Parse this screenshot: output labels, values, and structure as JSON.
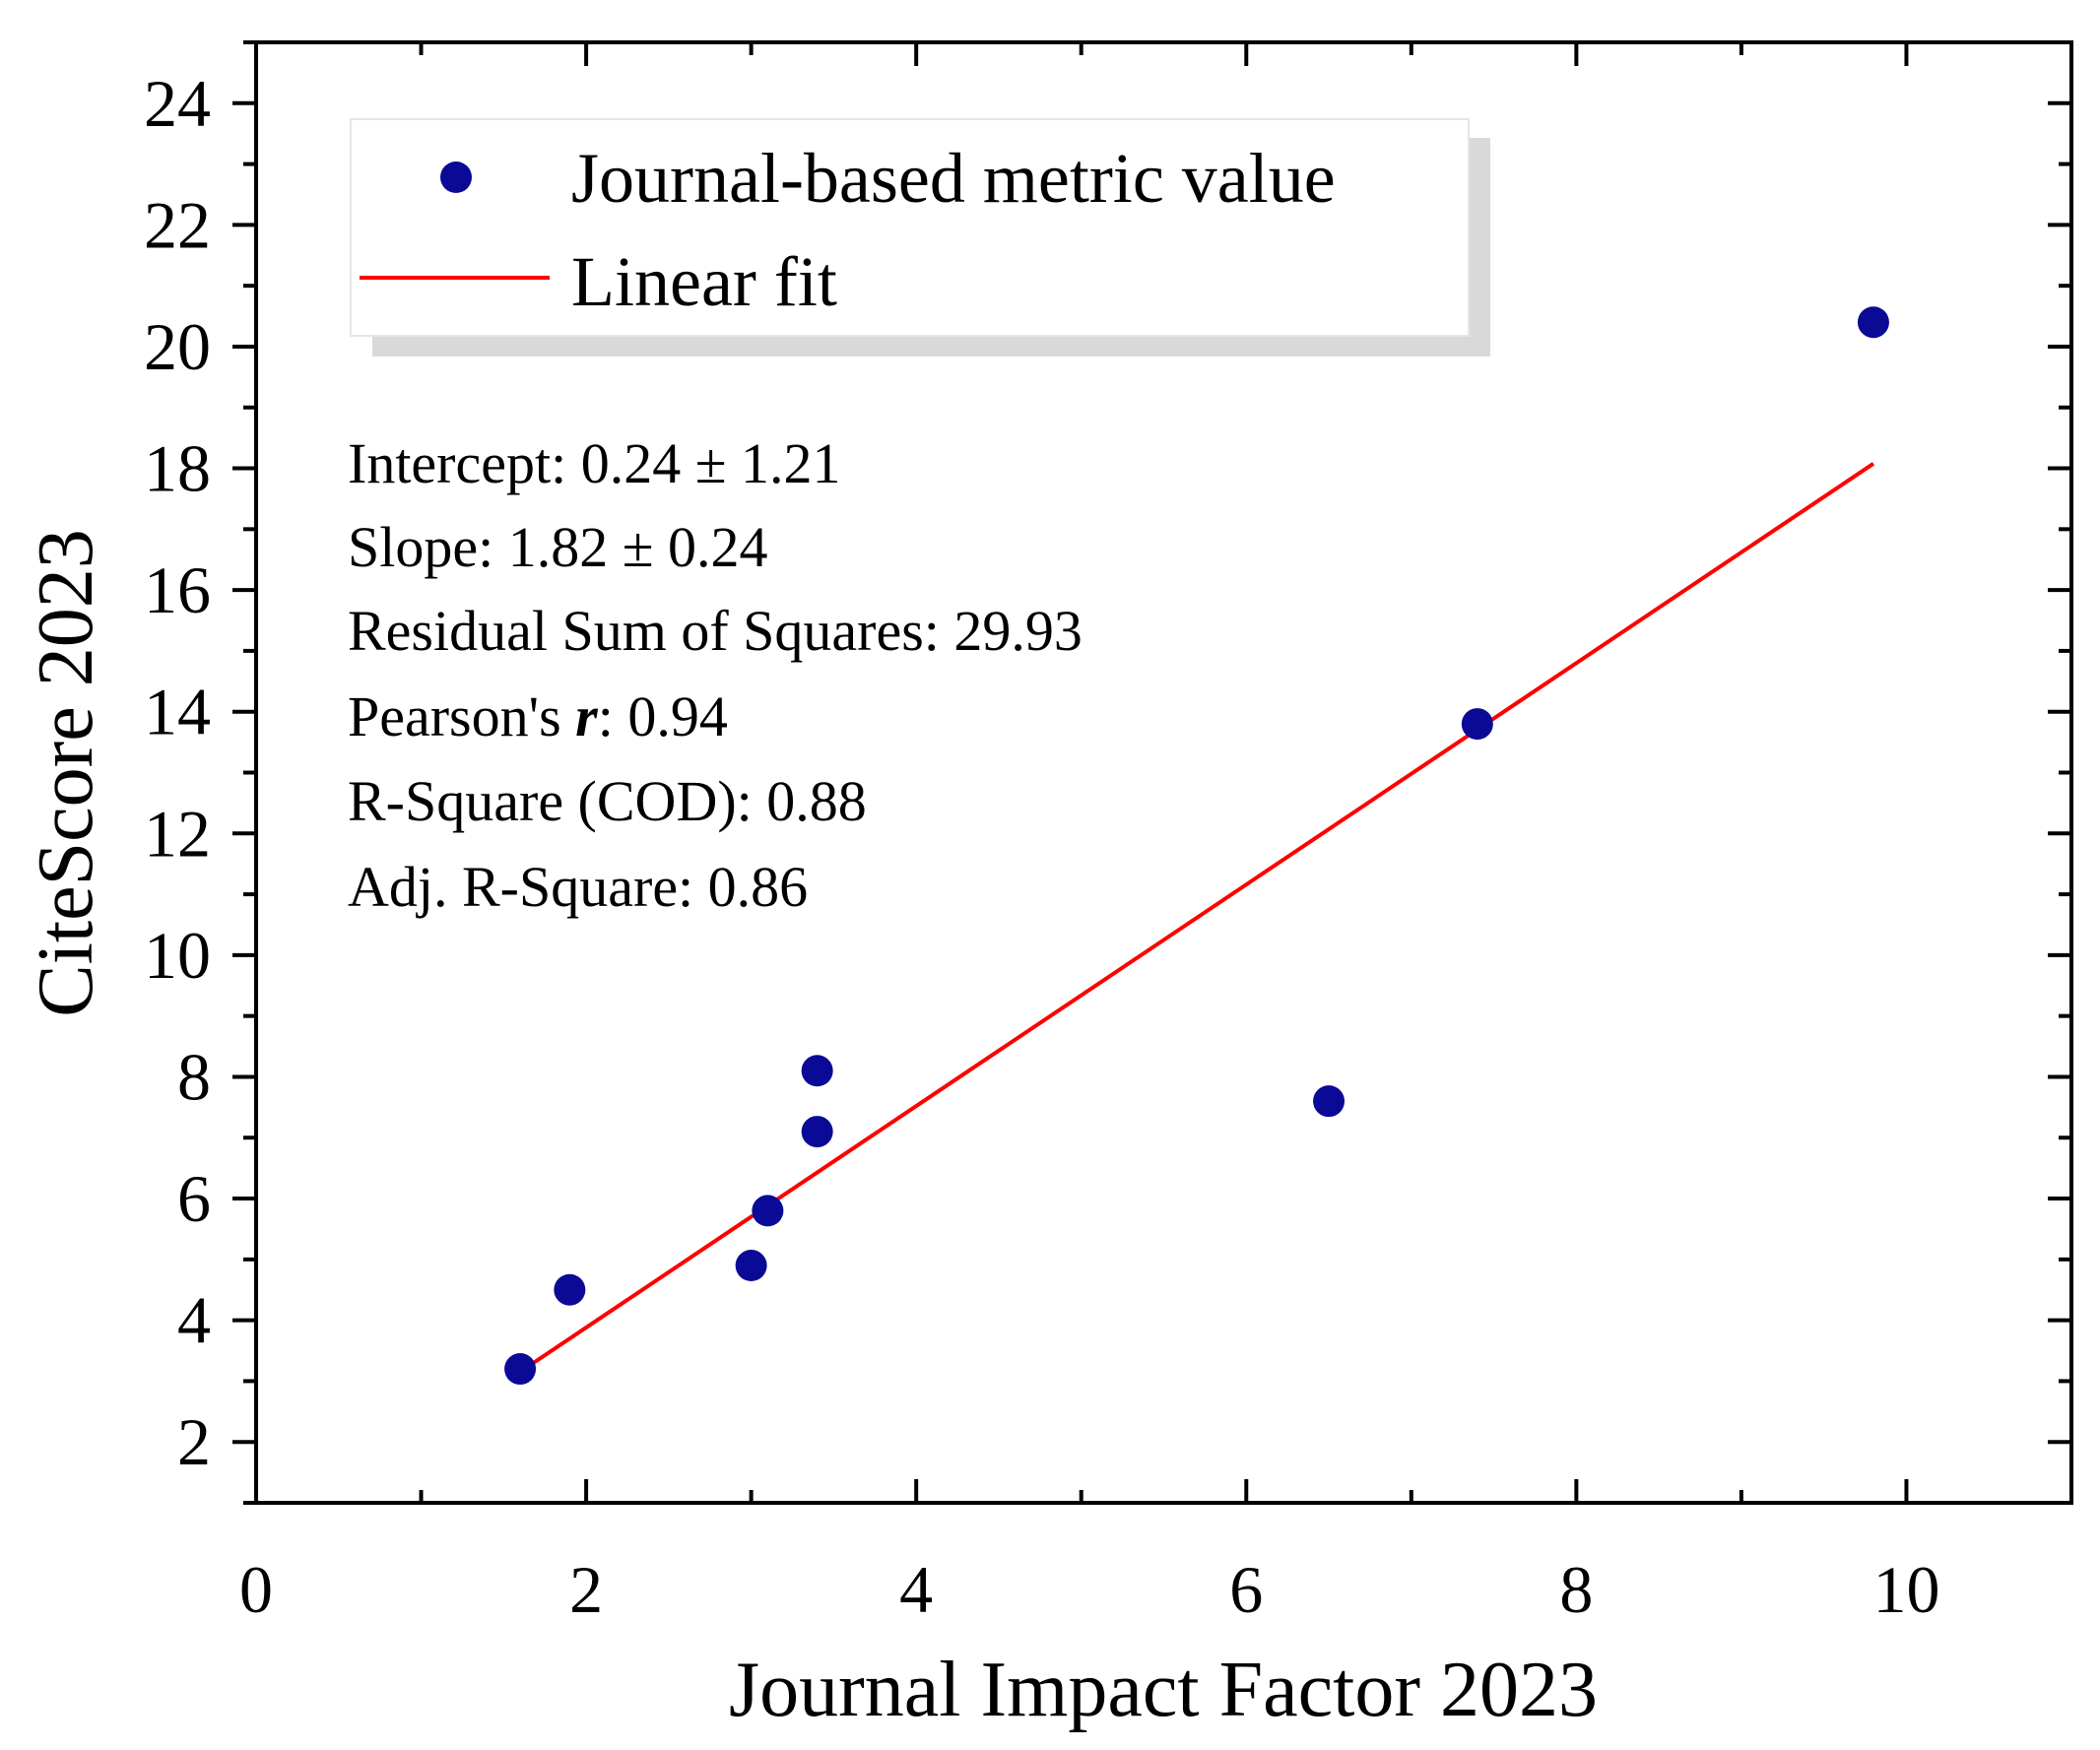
{
  "chart_data": {
    "type": "scatter",
    "xlabel": "Journal Impact Factor 2023",
    "ylabel": "CiteScore 2023",
    "xlim": [
      0,
      11
    ],
    "ylim": [
      1,
      25
    ],
    "x_ticks": [
      "0",
      "2",
      "4",
      "6",
      "8",
      "10"
    ],
    "y_ticks": [
      "2",
      "4",
      "6",
      "8",
      "10",
      "12",
      "14",
      "16",
      "18",
      "20",
      "22",
      "24"
    ],
    "series": [
      {
        "name": "Journal-based metric value",
        "kind": "scatter",
        "color": "#0a0a96",
        "points": [
          {
            "x": 1.6,
            "y": 3.2
          },
          {
            "x": 1.9,
            "y": 4.5
          },
          {
            "x": 3.0,
            "y": 4.9
          },
          {
            "x": 3.1,
            "y": 5.8
          },
          {
            "x": 3.4,
            "y": 7.1
          },
          {
            "x": 3.4,
            "y": 8.1
          },
          {
            "x": 6.5,
            "y": 7.6
          },
          {
            "x": 7.4,
            "y": 13.8
          },
          {
            "x": 9.8,
            "y": 20.4
          }
        ]
      },
      {
        "name": "Linear fit",
        "kind": "line",
        "color": "#ff0000",
        "x_range": [
          1.6,
          9.8
        ],
        "intercept": 0.24,
        "slope": 1.82
      }
    ],
    "legend": {
      "position": "top-left",
      "entries": [
        "Journal-based metric value",
        "Linear fit"
      ]
    },
    "annotations": {
      "intercept": "Intercept: 0.24 ± 1.21",
      "slope": "Slope: 1.82 ± 0.24",
      "rss": "Residual Sum of Squares: 29.93",
      "pearson_prefix": "Pearson's ",
      "pearson_symbol": "r",
      "pearson_value": ": 0.94",
      "r_square": "R-Square (COD): 0.88",
      "adj_r_square": "Adj. R-Square: 0.86"
    }
  }
}
